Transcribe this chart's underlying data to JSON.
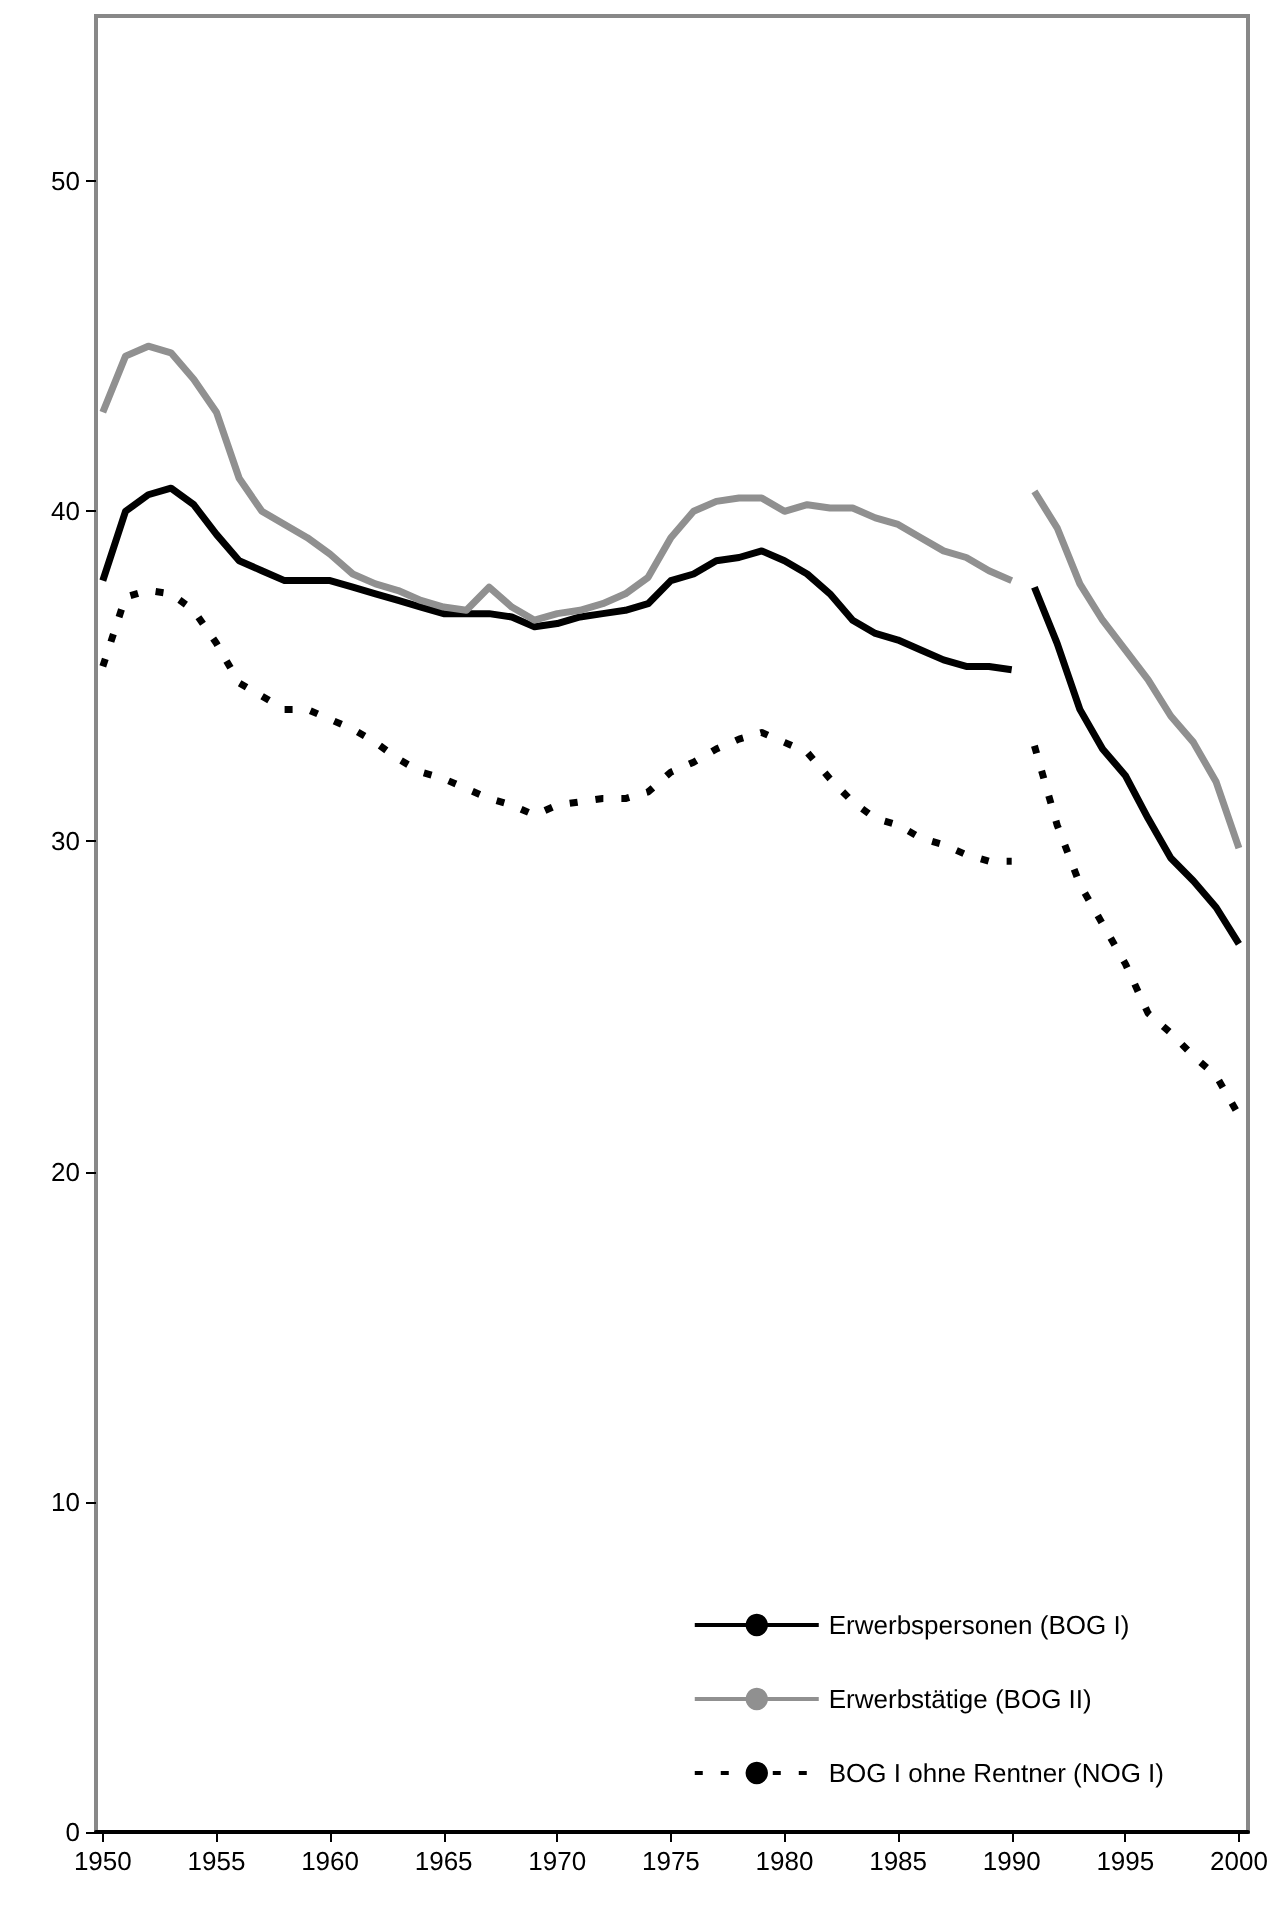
{
  "chart_data": {
    "type": "line",
    "x": [
      1950,
      1951,
      1952,
      1953,
      1954,
      1955,
      1956,
      1957,
      1958,
      1959,
      1960,
      1961,
      1962,
      1963,
      1964,
      1965,
      1966,
      1967,
      1968,
      1969,
      1970,
      1971,
      1972,
      1973,
      1974,
      1975,
      1976,
      1977,
      1978,
      1979,
      1980,
      1981,
      1982,
      1983,
      1984,
      1985,
      1986,
      1987,
      1988,
      1989,
      1990,
      1990.5,
      1991,
      1992,
      1993,
      1994,
      1995,
      1996,
      1997,
      1998,
      1999,
      2000
    ],
    "series": [
      {
        "name": "Erwerbspersonen (BOG I)",
        "color": "#000000",
        "line_style": "solid",
        "values": [
          37.9,
          40.0,
          40.5,
          40.7,
          40.2,
          39.3,
          38.5,
          38.2,
          37.9,
          37.9,
          37.9,
          37.7,
          37.5,
          37.3,
          37.1,
          36.9,
          36.9,
          36.9,
          36.8,
          36.5,
          36.6,
          36.8,
          36.9,
          37.0,
          37.2,
          37.9,
          38.1,
          38.5,
          38.6,
          38.8,
          38.5,
          38.1,
          37.5,
          36.7,
          36.3,
          36.1,
          35.8,
          35.5,
          35.3,
          35.3,
          35.2,
          null,
          37.7,
          36.0,
          34.0,
          32.8,
          32.0,
          30.7,
          29.5,
          28.8,
          28.0,
          26.9
        ]
      },
      {
        "name": "Erwerbstätige (BOG II)",
        "color": "#909090",
        "line_style": "solid",
        "values": [
          43.0,
          44.7,
          45.0,
          44.8,
          44.0,
          43.0,
          41.0,
          40.0,
          39.6,
          39.2,
          38.7,
          38.1,
          37.8,
          37.6,
          37.3,
          37.1,
          37.0,
          37.7,
          37.1,
          36.7,
          36.9,
          37.0,
          37.2,
          37.5,
          38.0,
          39.2,
          40.0,
          40.3,
          40.4,
          40.4,
          40.0,
          40.2,
          40.1,
          40.1,
          39.8,
          39.6,
          39.2,
          38.8,
          38.6,
          38.2,
          37.9,
          null,
          40.6,
          39.5,
          37.8,
          36.7,
          35.8,
          34.9,
          33.8,
          33.0,
          31.8,
          29.8
        ]
      },
      {
        "name": "BOG I ohne Rentner (NOG I)",
        "color": "#000000",
        "line_style": "dashed",
        "values": [
          35.3,
          37.4,
          37.6,
          37.5,
          37.0,
          36.0,
          34.8,
          34.4,
          34.0,
          34.0,
          33.7,
          33.4,
          33.0,
          32.5,
          32.1,
          31.9,
          31.6,
          31.3,
          31.1,
          30.8,
          31.1,
          31.2,
          31.3,
          31.3,
          31.5,
          32.1,
          32.4,
          32.8,
          33.1,
          33.3,
          33.0,
          32.7,
          31.9,
          31.2,
          30.7,
          30.5,
          30.1,
          29.9,
          29.6,
          29.4,
          29.4,
          null,
          32.9,
          30.5,
          28.7,
          27.5,
          26.3,
          24.8,
          24.2,
          23.5,
          22.9,
          21.7
        ]
      }
    ],
    "xlim": [
      1949.7,
      2000.4
    ],
    "xticks": [
      1950,
      1955,
      1960,
      1965,
      1970,
      1975,
      1980,
      1985,
      1990,
      1995,
      2000
    ],
    "ylim": [
      0,
      55
    ],
    "yticks": [
      0,
      10,
      20,
      30,
      40,
      50
    ],
    "legend": "bottom right"
  }
}
